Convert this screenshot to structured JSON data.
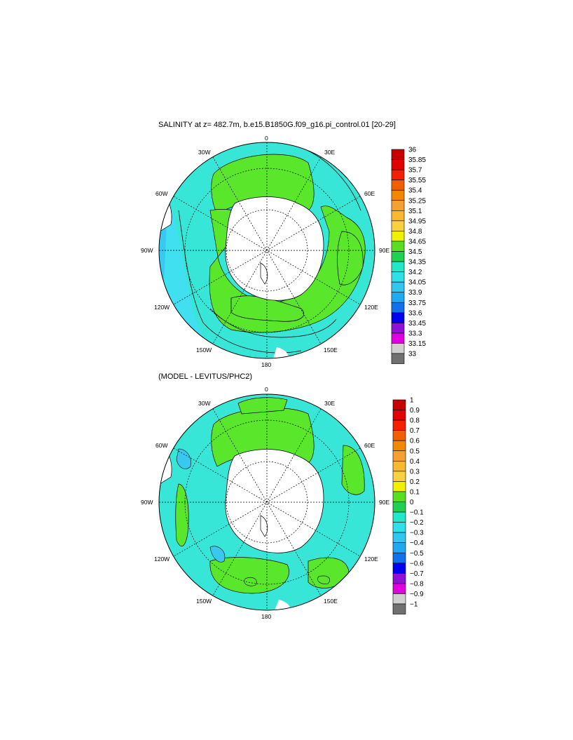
{
  "panels": [
    {
      "title": "SALINITY at z= 482.7m, b.e15.B1850G.f09_g16.pi_control.01 [20-29]",
      "colorbar": {
        "labels": [
          "36",
          "35.85",
          "35.7",
          "35.55",
          "35.4",
          "35.25",
          "35.1",
          "34.95",
          "34.8",
          "34.65",
          "34.5",
          "34.35",
          "34.2",
          "34.05",
          "33.9",
          "33.75",
          "33.6",
          "33.45",
          "33.3",
          "33.15",
          "33"
        ]
      }
    },
    {
      "title": "(MODEL - LEVITUS/PHC2)",
      "colorbar": {
        "labels": [
          "1",
          "0.9",
          "0.8",
          "0.7",
          "0.6",
          "0.5",
          "0.4",
          "0.3",
          "0.2",
          "0.1",
          "0",
          "−0.1",
          "−0.2",
          "−0.3",
          "−0.4",
          "−0.5",
          "−0.6",
          "−0.7",
          "−0.8",
          "−0.9",
          "−1"
        ]
      }
    }
  ],
  "map_labels": [
    "0",
    "30E",
    "60E",
    "90E",
    "120E",
    "150E",
    "180",
    "150W",
    "120W",
    "90W",
    "60W",
    "30W"
  ],
  "colorbar_colors": [
    "#c80000",
    "#e00000",
    "#f52000",
    "#f06000",
    "#f28800",
    "#f5a030",
    "#f8b830",
    "#f8d040",
    "#f0f000",
    "#58e020",
    "#20d050",
    "#20e8c8",
    "#30e0e8",
    "#30c8f0",
    "#20a8f0",
    "#1070f0",
    "#0000f0",
    "#9010d8",
    "#e000e0",
    "#d0d0d0",
    "#707070"
  ],
  "colors": {
    "land": "#ffffff",
    "green": "#5ae62a",
    "cyan": "#38e6d8",
    "light_blue": "#40e0f0",
    "sky_blue": "#38c8f0",
    "mid_green": "#22d855"
  }
}
